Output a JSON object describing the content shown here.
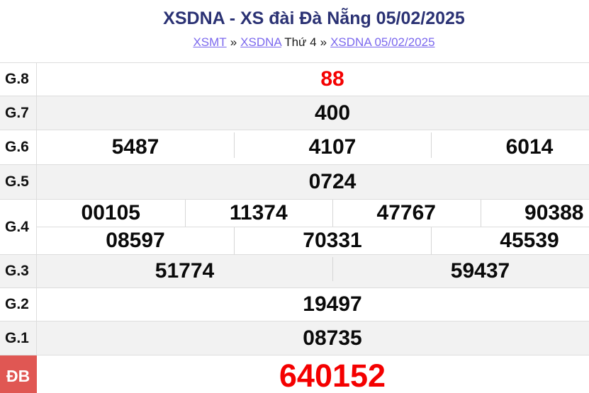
{
  "header": {
    "title": "XSDNA - XS đài Đà Nẵng 05/02/2025",
    "breadcrumb": {
      "link_region": "XSMT",
      "sep1": "»",
      "link_station": "XSDNA",
      "weekday": "Thứ 4",
      "sep2": "»",
      "link_draw": "XSDNA 05/02/2025"
    }
  },
  "colors": {
    "title_color": "#2b3274",
    "link_color": "#7b68ee",
    "red_number": "#f40000",
    "db_label_bg": "#e05753",
    "row_shade": "#f2f2f2",
    "border": "#dddddd"
  },
  "table": {
    "rows": [
      {
        "label": "G.8",
        "cells": [
          "88"
        ]
      },
      {
        "label": "G.7",
        "cells": [
          "400"
        ]
      },
      {
        "label": "G.6",
        "cells": [
          "5487",
          "4107",
          "6014"
        ]
      },
      {
        "label": "G.5",
        "cells": [
          "0724"
        ]
      },
      {
        "label": "G.4",
        "cells_top": [
          "00105",
          "11374",
          "47767",
          "90388"
        ],
        "cells_bottom": [
          "08597",
          "70331",
          "45539"
        ]
      },
      {
        "label": "G.3",
        "cells": [
          "51774",
          "59437"
        ]
      },
      {
        "label": "G.2",
        "cells": [
          "19497"
        ]
      },
      {
        "label": "G.1",
        "cells": [
          "08735"
        ]
      },
      {
        "label": "ĐB",
        "cells": [
          "640152"
        ]
      }
    ]
  }
}
